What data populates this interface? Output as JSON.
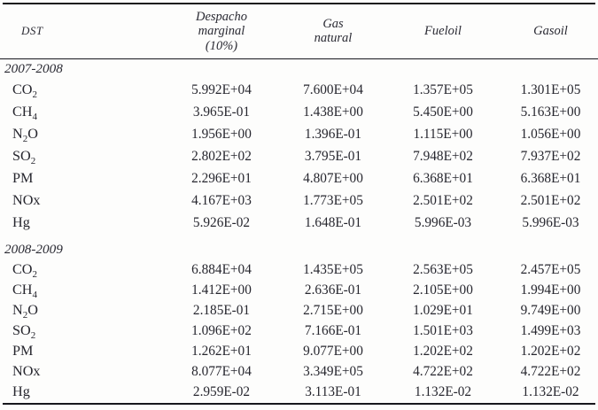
{
  "header": {
    "dst": "DST",
    "cols": [
      {
        "name": "despacho-marginal",
        "lines": [
          "Despacho",
          "marginal",
          "(10%)"
        ]
      },
      {
        "name": "gas-natural",
        "lines": [
          "Gas",
          "natural"
        ]
      },
      {
        "name": "fueloil",
        "lines": [
          "Fueloil"
        ]
      },
      {
        "name": "gasoil",
        "lines": [
          "Gasoil"
        ]
      }
    ]
  },
  "sections": [
    {
      "period": "2007-2008",
      "rows": [
        {
          "pre": "CO",
          "sub": "2",
          "post": "",
          "values": [
            "5.992E+04",
            "7.600E+04",
            "1.357E+05",
            "1.301E+05"
          ]
        },
        {
          "pre": "CH",
          "sub": "4",
          "post": "",
          "values": [
            "3.965E-01",
            "1.438E+00",
            "5.450E+00",
            "5.163E+00"
          ]
        },
        {
          "pre": "N",
          "sub": "2",
          "post": "O",
          "values": [
            "1.956E+00",
            "1.396E-01",
            "1.115E+00",
            "1.056E+00"
          ]
        },
        {
          "pre": "SO",
          "sub": "2",
          "post": "",
          "values": [
            "2.802E+02",
            "3.795E-01",
            "7.948E+02",
            "7.937E+02"
          ]
        },
        {
          "pre": "PM",
          "sub": "",
          "post": "",
          "values": [
            "2.296E+01",
            "4.807E+00",
            "6.368E+01",
            "6.368E+01"
          ]
        },
        {
          "pre": "NOx",
          "sub": "",
          "post": "",
          "values": [
            "4.167E+03",
            "1.773E+05",
            "2.501E+02",
            "2.501E+02"
          ]
        },
        {
          "pre": "Hg",
          "sub": "",
          "post": "",
          "values": [
            "5.926E-02",
            "1.648E-01",
            "5.996E-03",
            "5.996E-03"
          ]
        }
      ]
    },
    {
      "period": "2008-2009",
      "rows": [
        {
          "pre": "CO",
          "sub": "2",
          "post": "",
          "values": [
            "6.884E+04",
            "1.435E+05",
            "2.563E+05",
            "2.457E+05"
          ]
        },
        {
          "pre": "CH",
          "sub": "4",
          "post": "",
          "values": [
            "1.412E+00",
            "2.636E-01",
            "2.105E+00",
            "1.994E+00"
          ]
        },
        {
          "pre": "N",
          "sub": "2",
          "post": "O",
          "values": [
            "2.185E-01",
            "2.715E+00",
            "1.029E+01",
            "9.749E+00"
          ]
        },
        {
          "pre": "SO",
          "sub": "2",
          "post": "",
          "values": [
            "1.096E+02",
            "7.166E-01",
            "1.501E+03",
            "1.499E+03"
          ]
        },
        {
          "pre": "PM",
          "sub": "",
          "post": "",
          "values": [
            "1.262E+01",
            "9.077E+00",
            "1.202E+02",
            "1.202E+02"
          ]
        },
        {
          "pre": "NOx",
          "sub": "",
          "post": "",
          "values": [
            "8.077E+04",
            "3.349E+05",
            "4.722E+02",
            "4.722E+02"
          ]
        },
        {
          "pre": "Hg",
          "sub": "",
          "post": "",
          "values": [
            "2.959E-02",
            "3.113E-01",
            "1.132E-02",
            "1.132E-02"
          ]
        }
      ]
    }
  ],
  "colors": {
    "text": "#26262e",
    "rule": "#17171d",
    "background": "#fdfdfc"
  }
}
